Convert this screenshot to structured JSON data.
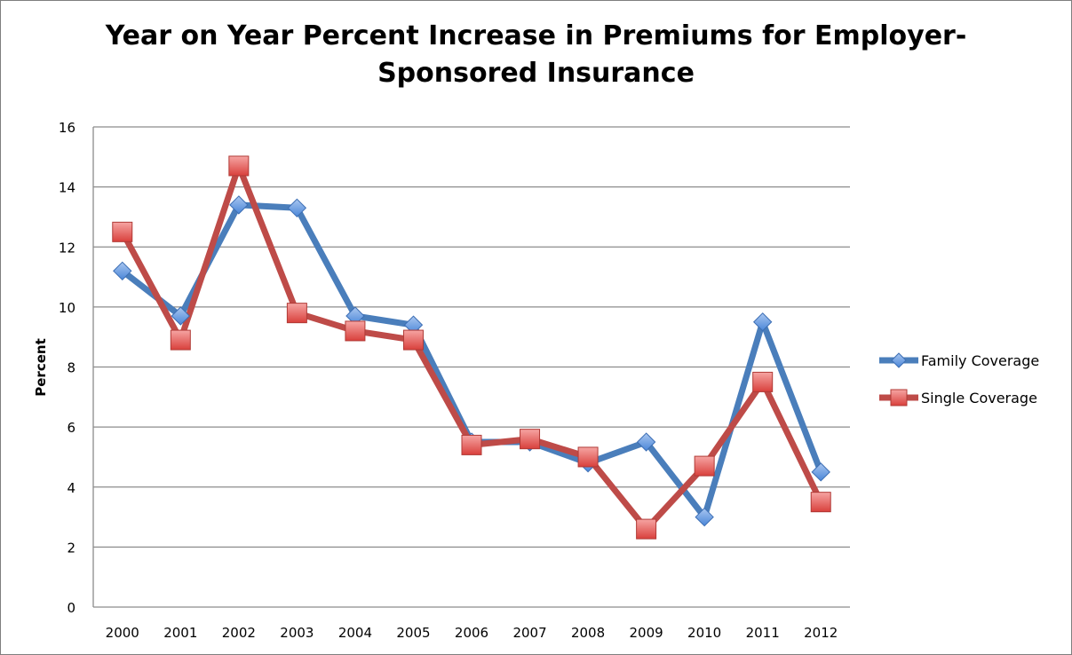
{
  "chart_data": {
    "type": "line",
    "title_line1": "Year on Year Percent Increase in Premiums for Employer-",
    "title_line2": "Sponsored Insurance",
    "xlabel": "",
    "ylabel": "Percent",
    "ylim": [
      0,
      16
    ],
    "yticks": [
      0,
      2,
      4,
      6,
      8,
      10,
      12,
      14,
      16
    ],
    "grid": true,
    "legend_position": "right",
    "categories": [
      "2000",
      "2001",
      "2002",
      "2003",
      "2004",
      "2005",
      "2006",
      "2007",
      "2008",
      "2009",
      "2010",
      "2011",
      "2012"
    ],
    "series": [
      {
        "name": "Family Coverage",
        "color": "#4a7ebb",
        "marker": "diamond",
        "values": [
          11.2,
          9.7,
          13.4,
          13.3,
          9.7,
          9.4,
          5.5,
          5.5,
          4.8,
          5.5,
          3.0,
          9.5,
          4.5
        ]
      },
      {
        "name": "Single Coverage",
        "color": "#be4b48",
        "marker": "square",
        "values": [
          12.5,
          8.9,
          14.7,
          9.8,
          9.2,
          8.9,
          5.4,
          5.6,
          5.0,
          2.6,
          4.7,
          7.5,
          3.5
        ]
      }
    ]
  }
}
